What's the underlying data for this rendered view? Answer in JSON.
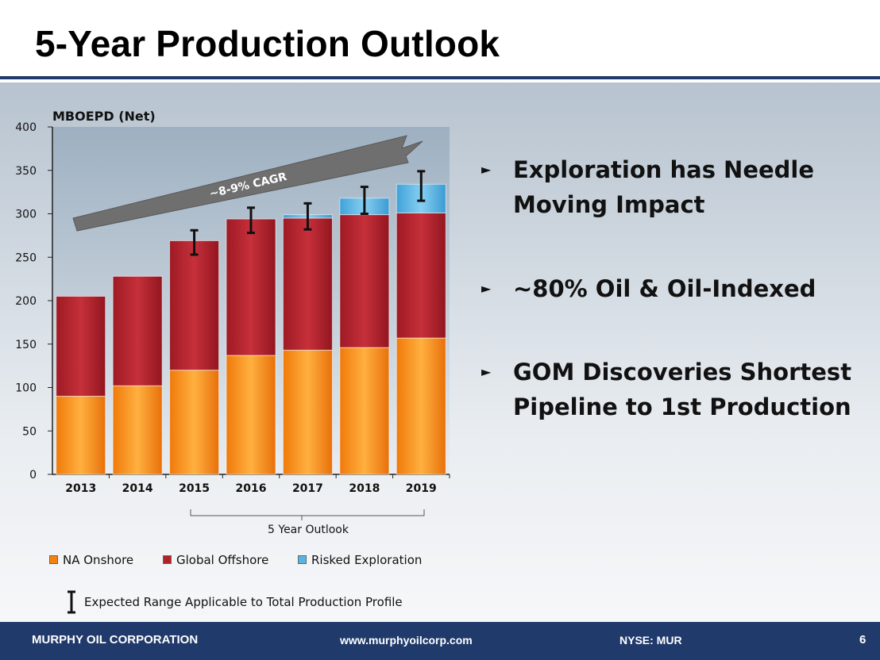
{
  "slide": {
    "title": "5-Year Production Outlook",
    "page_number": "6"
  },
  "chart_data": {
    "type": "bar",
    "stacked": true,
    "ylabel": "MBOEPD (Net)",
    "ylim": [
      0,
      400
    ],
    "yticks": [
      0,
      50,
      100,
      150,
      200,
      250,
      300,
      350,
      400
    ],
    "categories": [
      "2013",
      "2014",
      "2015",
      "2016",
      "2017",
      "2018",
      "2019"
    ],
    "series": [
      {
        "name": "NA Onshore",
        "color": "#f5820f",
        "values": [
          90,
          102,
          120,
          137,
          143,
          146,
          157
        ]
      },
      {
        "name": "Global Offshore",
        "color": "#b3202a",
        "values": [
          115,
          126,
          149,
          157,
          152,
          153,
          144
        ]
      },
      {
        "name": "Risked Exploration",
        "color": "#5ab4e3",
        "values": [
          0,
          0,
          0,
          0,
          4,
          19,
          33
        ]
      }
    ],
    "error_ranges": [
      null,
      null,
      [
        253,
        281
      ],
      [
        278,
        307
      ],
      [
        282,
        312
      ],
      [
        300,
        331
      ],
      [
        315,
        349
      ]
    ],
    "annotations": {
      "arrow_label": "~8-9% CAGR",
      "outlook_label": "5 Year Outlook"
    },
    "range_note": "Expected Range Applicable to Total Production Profile",
    "grid": false,
    "legend_position": "bottom"
  },
  "bullets": [
    "Exploration has Needle Moving Impact",
    "~80% Oil & Oil-Indexed",
    "GOM Discoveries Shortest Pipeline to 1st Production"
  ],
  "bullet_marker": "►",
  "footer": {
    "company": "MURPHY OIL CORPORATION",
    "website": "www.murphyoilcorp.com",
    "ticker": "NYSE: MUR"
  }
}
